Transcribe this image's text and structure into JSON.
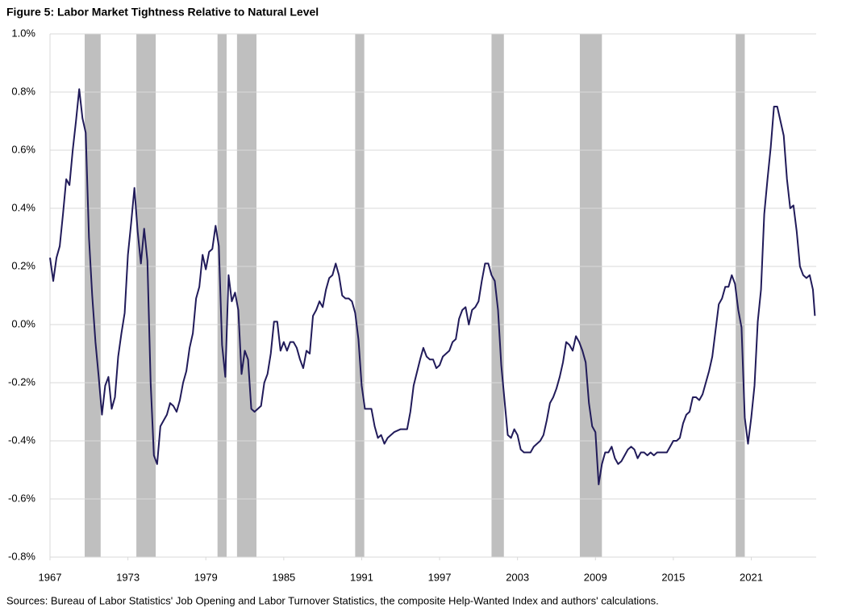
{
  "chart_data": {
    "type": "line",
    "title": "Figure 5: Labor Market Tightness Relative to Natural Level",
    "source": "Sources: Bureau of Labor Statistics' Job Opening and Labor Turnover Statistics, the composite Help-Wanted Index and authors' calculations.",
    "x": [
      1967.0,
      1967.25,
      1967.5,
      1967.75,
      1968.0,
      1968.25,
      1968.5,
      1968.75,
      1969.0,
      1969.25,
      1969.5,
      1969.75,
      1970.0,
      1970.25,
      1970.5,
      1970.75,
      1971.0,
      1971.25,
      1971.5,
      1971.75,
      1972.0,
      1972.25,
      1972.5,
      1972.75,
      1973.0,
      1973.25,
      1973.5,
      1973.75,
      1974.0,
      1974.25,
      1974.5,
      1974.75,
      1975.0,
      1975.25,
      1975.5,
      1975.75,
      1976.0,
      1976.25,
      1976.5,
      1976.75,
      1977.0,
      1977.25,
      1977.5,
      1977.75,
      1978.0,
      1978.25,
      1978.5,
      1978.75,
      1979.0,
      1979.25,
      1979.5,
      1979.75,
      1980.0,
      1980.25,
      1980.5,
      1980.75,
      1981.0,
      1981.25,
      1981.5,
      1981.75,
      1982.0,
      1982.25,
      1982.5,
      1982.75,
      1983.0,
      1983.25,
      1983.5,
      1983.75,
      1984.0,
      1984.25,
      1984.5,
      1984.75,
      1985.0,
      1985.25,
      1985.5,
      1985.75,
      1986.0,
      1986.25,
      1986.5,
      1986.75,
      1987.0,
      1987.25,
      1987.5,
      1987.75,
      1988.0,
      1988.25,
      1988.5,
      1988.75,
      1989.0,
      1989.25,
      1989.5,
      1989.75,
      1990.0,
      1990.25,
      1990.5,
      1990.75,
      1991.0,
      1991.25,
      1991.5,
      1991.75,
      1992.0,
      1992.25,
      1992.5,
      1992.75,
      1993.0,
      1993.5,
      1994.0,
      1994.5,
      1994.75,
      1995.0,
      1995.5,
      1995.75,
      1996.0,
      1996.25,
      1996.5,
      1996.75,
      1997.0,
      1997.25,
      1997.5,
      1997.75,
      1998.0,
      1998.25,
      1998.5,
      1998.75,
      1999.0,
      1999.25,
      1999.5,
      1999.75,
      2000.0,
      2000.25,
      2000.5,
      2000.75,
      2001.0,
      2001.25,
      2001.5,
      2001.75,
      2002.0,
      2002.25,
      2002.5,
      2002.75,
      2003.0,
      2003.25,
      2003.5,
      2003.75,
      2004.0,
      2004.25,
      2004.5,
      2004.75,
      2005.0,
      2005.25,
      2005.5,
      2005.75,
      2006.0,
      2006.25,
      2006.5,
      2006.75,
      2007.0,
      2007.25,
      2007.5,
      2007.75,
      2008.0,
      2008.25,
      2008.5,
      2008.75,
      2009.0,
      2009.25,
      2009.5,
      2009.75,
      2010.0,
      2010.25,
      2010.5,
      2010.75,
      2011.0,
      2011.25,
      2011.5,
      2011.75,
      2012.0,
      2012.25,
      2012.5,
      2012.75,
      2013.0,
      2013.25,
      2013.5,
      2013.75,
      2014.0,
      2014.5,
      2014.75,
      2015.0,
      2015.25,
      2015.5,
      2015.75,
      2016.0,
      2016.25,
      2016.5,
      2016.75,
      2017.0,
      2017.25,
      2017.5,
      2017.75,
      2018.0,
      2018.25,
      2018.5,
      2018.75,
      2019.0,
      2019.25,
      2019.5,
      2019.75,
      2020.0,
      2020.25,
      2020.5,
      2020.75,
      2021.0,
      2021.25,
      2021.5,
      2021.75,
      2022.0,
      2022.25,
      2022.5,
      2022.75,
      2023.0,
      2023.25,
      2023.5,
      2023.75,
      2024.0,
      2024.25,
      2024.5,
      2024.75,
      2025.0,
      2025.25,
      2025.5,
      2025.75,
      2025.9
    ],
    "series": [
      {
        "color": "#211b5a",
        "values": [
          0.23,
          0.15,
          0.23,
          0.27,
          0.38,
          0.5,
          0.48,
          0.6,
          0.7,
          0.81,
          0.71,
          0.66,
          0.3,
          0.1,
          -0.06,
          -0.18,
          -0.31,
          -0.21,
          -0.18,
          -0.29,
          -0.25,
          -0.11,
          -0.03,
          0.04,
          0.24,
          0.35,
          0.47,
          0.32,
          0.21,
          0.33,
          0.22,
          -0.2,
          -0.45,
          -0.48,
          -0.35,
          -0.33,
          -0.31,
          -0.27,
          -0.28,
          -0.3,
          -0.26,
          -0.2,
          -0.16,
          -0.08,
          -0.03,
          0.09,
          0.13,
          0.24,
          0.19,
          0.25,
          0.26,
          0.34,
          0.27,
          -0.07,
          -0.18,
          0.17,
          0.08,
          0.11,
          0.05,
          -0.17,
          -0.09,
          -0.12,
          -0.29,
          -0.3,
          -0.29,
          -0.28,
          -0.2,
          -0.17,
          -0.1,
          0.01,
          0.01,
          -0.09,
          -0.06,
          -0.09,
          -0.06,
          -0.06,
          -0.08,
          -0.12,
          -0.15,
          -0.09,
          -0.1,
          0.03,
          0.05,
          0.08,
          0.06,
          0.12,
          0.16,
          0.17,
          0.21,
          0.17,
          0.1,
          0.09,
          0.09,
          0.08,
          0.04,
          -0.05,
          -0.21,
          -0.29,
          -0.29,
          -0.29,
          -0.35,
          -0.39,
          -0.38,
          -0.41,
          -0.39,
          -0.37,
          -0.36,
          -0.36,
          -0.3,
          -0.21,
          -0.12,
          -0.08,
          -0.11,
          -0.12,
          -0.12,
          -0.15,
          -0.14,
          -0.11,
          -0.1,
          -0.09,
          -0.06,
          -0.05,
          0.02,
          0.05,
          0.06,
          0.0,
          0.05,
          0.06,
          0.08,
          0.15,
          0.21,
          0.21,
          0.17,
          0.15,
          0.05,
          -0.14,
          -0.26,
          -0.38,
          -0.39,
          -0.36,
          -0.38,
          -0.43,
          -0.44,
          -0.44,
          -0.44,
          -0.42,
          -0.41,
          -0.4,
          -0.38,
          -0.33,
          -0.27,
          -0.25,
          -0.22,
          -0.18,
          -0.13,
          -0.06,
          -0.07,
          -0.09,
          -0.04,
          -0.06,
          -0.09,
          -0.13,
          -0.27,
          -0.35,
          -0.37,
          -0.55,
          -0.48,
          -0.44,
          -0.44,
          -0.42,
          -0.46,
          -0.48,
          -0.47,
          -0.45,
          -0.43,
          -0.42,
          -0.43,
          -0.46,
          -0.44,
          -0.44,
          -0.45,
          -0.44,
          -0.45,
          -0.44,
          -0.44,
          -0.44,
          -0.42,
          -0.4,
          -0.4,
          -0.39,
          -0.34,
          -0.31,
          -0.3,
          -0.25,
          -0.25,
          -0.26,
          -0.24,
          -0.2,
          -0.16,
          -0.11,
          -0.02,
          0.07,
          0.09,
          0.13,
          0.13,
          0.17,
          0.14,
          0.05,
          -0.01,
          -0.32,
          -0.41,
          -0.32,
          -0.21,
          0.01,
          0.12,
          0.38,
          0.5,
          0.61,
          0.75,
          0.75,
          0.7,
          0.65,
          0.5,
          0.4,
          0.41,
          0.32,
          0.2,
          0.17,
          0.16,
          0.17,
          0.12,
          0.03
        ]
      }
    ],
    "shaded_periods": [
      [
        1969.67,
        1970.9
      ],
      [
        1973.65,
        1975.14
      ],
      [
        1979.9,
        1980.6
      ],
      [
        1981.4,
        1982.9
      ],
      [
        1990.5,
        1991.2
      ],
      [
        2001.0,
        2001.95
      ],
      [
        2007.8,
        2009.5
      ],
      [
        2019.8,
        2020.5
      ]
    ],
    "shade_color": "#bfbfbf",
    "xlim": [
      1967,
      2026
    ],
    "xticks": [
      1967,
      1973,
      1979,
      1985,
      1991,
      1997,
      2003,
      2009,
      2015,
      2021
    ],
    "ylim": [
      -0.8,
      1.0
    ],
    "yticks": [
      {
        "value": -0.8,
        "label": "-0.8%"
      },
      {
        "value": -0.6,
        "label": "-0.6%"
      },
      {
        "value": -0.4,
        "label": "-0.4%"
      },
      {
        "value": -0.2,
        "label": "-0.2%"
      },
      {
        "value": 0.0,
        "label": "0.0%"
      },
      {
        "value": 0.2,
        "label": "0.2%"
      },
      {
        "value": 0.4,
        "label": "0.4%"
      },
      {
        "value": 0.6,
        "label": "0.6%"
      },
      {
        "value": 0.8,
        "label": "0.8%"
      },
      {
        "value": 1.0,
        "label": "1.0%"
      }
    ],
    "grid": true
  }
}
